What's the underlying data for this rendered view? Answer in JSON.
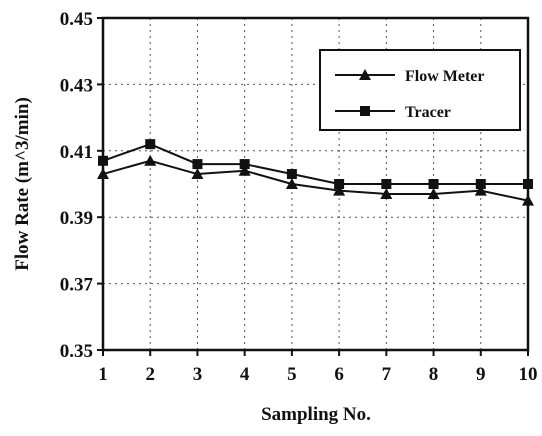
{
  "chart_data": {
    "type": "line",
    "xlabel": "Sampling No.",
    "ylabel": "Flow Rate (m^3/min)",
    "x": [
      1,
      2,
      3,
      4,
      5,
      6,
      7,
      8,
      9,
      10
    ],
    "xlim": [
      1,
      10
    ],
    "ylim": [
      0.35,
      0.45
    ],
    "yticks": [
      "0.35",
      "0.37",
      "0.39",
      "0.41",
      "0.43",
      "0.45"
    ],
    "xticks": [
      "1",
      "2",
      "3",
      "4",
      "5",
      "6",
      "7",
      "8",
      "9",
      "10"
    ],
    "grid": true,
    "legend_position": "top-right",
    "series": [
      {
        "name": "Flow Meter",
        "marker": "triangle",
        "values": [
          0.403,
          0.407,
          0.403,
          0.404,
          0.4,
          0.398,
          0.397,
          0.397,
          0.398,
          0.395
        ]
      },
      {
        "name": "Tracer",
        "marker": "square",
        "values": [
          0.407,
          0.412,
          0.406,
          0.406,
          0.403,
          0.4,
          0.4,
          0.4,
          0.4,
          0.4
        ]
      }
    ],
    "line_color": "#111111"
  }
}
